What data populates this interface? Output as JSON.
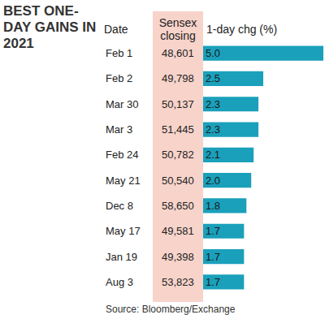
{
  "chart_data": {
    "type": "bar",
    "orientation": "horizontal",
    "title": "BEST ONE-DAY GAINS IN 2021",
    "category_header": "Date",
    "value_header": "1-day chg (%)",
    "categories": [
      "Feb 1",
      "Feb 2",
      "Mar 30",
      "Mar 3",
      "Feb 24",
      "May 21",
      "Dec 8",
      "May 17",
      "Jan 19",
      "Aug 3"
    ],
    "values": [
      5.0,
      2.5,
      2.3,
      2.3,
      2.1,
      2.0,
      1.8,
      1.7,
      1.7,
      1.7
    ],
    "value_labels": [
      "5.0",
      "2.5",
      "2.3",
      "2.3",
      "2.1",
      "2.0",
      "1.8",
      "1.7",
      "1.7",
      "1.7"
    ],
    "closing": {
      "header": "Sensex closing",
      "values": [
        48601,
        49798,
        50137,
        51445,
        50782,
        50540,
        58650,
        49581,
        49398,
        53823
      ],
      "value_labels": [
        "48,601",
        "49,798",
        "50,137",
        "51,445",
        "50,782",
        "50,540",
        "58,650",
        "49,581",
        "49,398",
        "53,823"
      ]
    },
    "color": "#1aa0bb",
    "xlim": [
      0,
      5
    ],
    "data_labels": true,
    "tick_labels": false,
    "grid": false,
    "source": "Source: Bloomberg/Exchange"
  }
}
